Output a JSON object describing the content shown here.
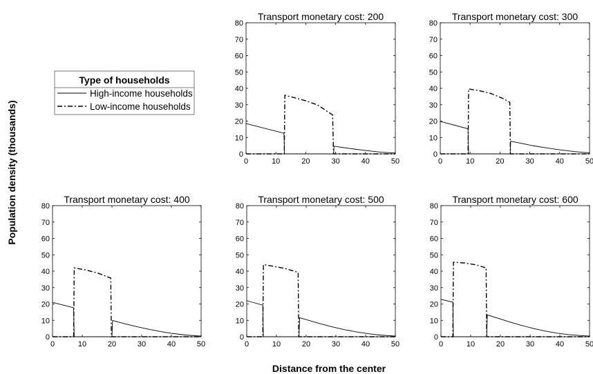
{
  "figure": {
    "ylabel": "Population density (thousands)",
    "xlabel": "Distance from the center"
  },
  "legend": {
    "title": "Type of households",
    "entries": [
      {
        "label": "High-income households",
        "style": "solid"
      },
      {
        "label": "Low-income households",
        "style": "dash-dot"
      }
    ]
  },
  "chart_data": [
    {
      "type": "line",
      "title": "Transport monetary cost: 200",
      "xlim": [
        0,
        50
      ],
      "ylim": [
        0,
        80
      ],
      "xticks": [
        0,
        10,
        20,
        30,
        40,
        50
      ],
      "yticks": [
        0,
        10,
        20,
        30,
        40,
        50,
        60,
        70,
        80
      ],
      "series": [
        {
          "name": "High-income households",
          "style": "solid",
          "points": [
            [
              0,
              18.5
            ],
            [
              12.7,
              12.6
            ],
            [
              12.9,
              0
            ],
            [
              29.3,
              0
            ],
            [
              29.5,
              4.7
            ],
            [
              32,
              4.0
            ],
            [
              36,
              3.0
            ],
            [
              40,
              2.1
            ],
            [
              45,
              1.1
            ],
            [
              50,
              0.5
            ]
          ]
        },
        {
          "name": "Low-income households",
          "style": "dash-dot",
          "points": [
            [
              0,
              0
            ],
            [
              12.8,
              0
            ],
            [
              13.0,
              35.8
            ],
            [
              16,
              34.4
            ],
            [
              20,
              32.4
            ],
            [
              24,
              29.8
            ],
            [
              29.0,
              23.8
            ],
            [
              29.3,
              0
            ],
            [
              50,
              0
            ]
          ]
        }
      ]
    },
    {
      "type": "line",
      "title": "Transport monetary cost: 300",
      "xlim": [
        0,
        50
      ],
      "ylim": [
        0,
        80
      ],
      "xticks": [
        0,
        10,
        20,
        30,
        40,
        50
      ],
      "yticks": [
        0,
        10,
        20,
        30,
        40,
        50,
        60,
        70,
        80
      ],
      "series": [
        {
          "name": "High-income households",
          "style": "solid",
          "points": [
            [
              0,
              19.8
            ],
            [
              9.3,
              15.3
            ],
            [
              9.5,
              0
            ],
            [
              23.4,
              0
            ],
            [
              23.6,
              7.7
            ],
            [
              27,
              6.5
            ],
            [
              31,
              5.0
            ],
            [
              35,
              3.8
            ],
            [
              40,
              2.5
            ],
            [
              45,
              1.4
            ],
            [
              50,
              0.6
            ]
          ]
        },
        {
          "name": "Low-income households",
          "style": "dash-dot",
          "points": [
            [
              0,
              0
            ],
            [
              9.3,
              0
            ],
            [
              9.5,
              39.6
            ],
            [
              13,
              38.6
            ],
            [
              17,
              36.8
            ],
            [
              21,
              33.8
            ],
            [
              23.3,
              31.4
            ],
            [
              23.5,
              0
            ],
            [
              50,
              0
            ]
          ]
        }
      ]
    },
    {
      "type": "line",
      "title": "Transport monetary cost: 400",
      "xlim": [
        0,
        50
      ],
      "ylim": [
        0,
        80
      ],
      "xticks": [
        0,
        10,
        20,
        30,
        40,
        50
      ],
      "yticks": [
        0,
        10,
        20,
        30,
        40,
        50,
        60,
        70,
        80
      ],
      "series": [
        {
          "name": "High-income households",
          "style": "solid",
          "points": [
            [
              0,
              21.0
            ],
            [
              7.1,
              17.7
            ],
            [
              7.3,
              0
            ],
            [
              20.0,
              0
            ],
            [
              20.2,
              9.9
            ],
            [
              24,
              8.1
            ],
            [
              28,
              6.3
            ],
            [
              32,
              4.7
            ],
            [
              36,
              3.3
            ],
            [
              40,
              2.1
            ],
            [
              45,
              1.0
            ],
            [
              50,
              0.4
            ]
          ]
        },
        {
          "name": "Low-income households",
          "style": "dash-dot",
          "points": [
            [
              0,
              0
            ],
            [
              7.1,
              0
            ],
            [
              7.3,
              42.0
            ],
            [
              11,
              40.8
            ],
            [
              15,
              39.0
            ],
            [
              19.6,
              35.8
            ],
            [
              19.8,
              0
            ],
            [
              50,
              0
            ]
          ]
        }
      ]
    },
    {
      "type": "line",
      "title": "Transport monetary cost: 500",
      "xlim": [
        0,
        50
      ],
      "ylim": [
        0,
        80
      ],
      "xticks": [
        0,
        10,
        20,
        30,
        40,
        50
      ],
      "yticks": [
        0,
        10,
        20,
        30,
        40,
        50,
        60,
        70,
        80
      ],
      "series": [
        {
          "name": "High-income households",
          "style": "solid",
          "points": [
            [
              0,
              22.0
            ],
            [
              5.4,
              19.3
            ],
            [
              5.6,
              0
            ],
            [
              17.6,
              0
            ],
            [
              17.8,
              11.6
            ],
            [
              21,
              9.9
            ],
            [
              25,
              7.8
            ],
            [
              29,
              5.9
            ],
            [
              33,
              4.3
            ],
            [
              37,
              2.9
            ],
            [
              41,
              1.8
            ],
            [
              45,
              1.0
            ],
            [
              50,
              0.4
            ]
          ]
        },
        {
          "name": "Low-income households",
          "style": "dash-dot",
          "points": [
            [
              0,
              0
            ],
            [
              5.4,
              0
            ],
            [
              5.6,
              44.0
            ],
            [
              9,
              43.0
            ],
            [
              13,
              41.6
            ],
            [
              17.3,
              39.3
            ],
            [
              17.5,
              0
            ],
            [
              50,
              0
            ]
          ]
        }
      ]
    },
    {
      "type": "line",
      "title": "Transport monetary cost: 600",
      "xlim": [
        0,
        50
      ],
      "ylim": [
        0,
        80
      ],
      "xticks": [
        0,
        10,
        20,
        30,
        40,
        50
      ],
      "yticks": [
        0,
        10,
        20,
        30,
        40,
        50,
        60,
        70,
        80
      ],
      "series": [
        {
          "name": "High-income households",
          "style": "solid",
          "points": [
            [
              0,
              22.8
            ],
            [
              4.0,
              21.1
            ],
            [
              4.2,
              0
            ],
            [
              15.4,
              0
            ],
            [
              15.6,
              13.3
            ],
            [
              19,
              11.4
            ],
            [
              23,
              9.1
            ],
            [
              27,
              7.0
            ],
            [
              31,
              5.1
            ],
            [
              35,
              3.5
            ],
            [
              39,
              2.2
            ],
            [
              43,
              1.3
            ],
            [
              47,
              0.7
            ],
            [
              50,
              0.4
            ]
          ]
        },
        {
          "name": "Low-income households",
          "style": "dash-dot",
          "points": [
            [
              0,
              0
            ],
            [
              4.0,
              0
            ],
            [
              4.2,
              45.5
            ],
            [
              8,
              45.0
            ],
            [
              12,
              43.8
            ],
            [
              15.2,
              42.0
            ],
            [
              15.4,
              0
            ],
            [
              50,
              0
            ]
          ]
        }
      ]
    }
  ]
}
